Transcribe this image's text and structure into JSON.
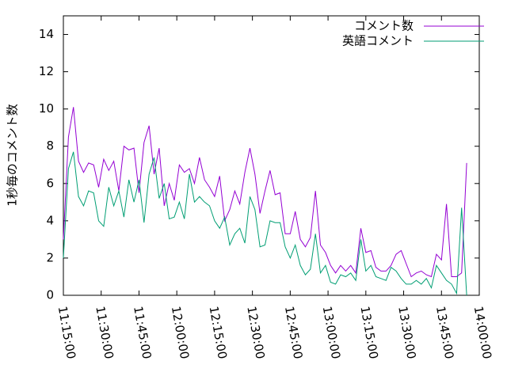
{
  "chart_data": {
    "type": "line",
    "y_label": "1秒毎のコメント数",
    "x": [
      "11:15:00",
      "11:17:00",
      "11:19:00",
      "11:21:00",
      "11:23:00",
      "11:25:00",
      "11:27:00",
      "11:29:00",
      "11:31:00",
      "11:33:00",
      "11:35:00",
      "11:37:00",
      "11:39:00",
      "11:41:00",
      "11:43:00",
      "11:45:00",
      "11:47:00",
      "11:49:00",
      "11:51:00",
      "11:53:00",
      "11:55:00",
      "11:57:00",
      "11:59:00",
      "12:01:00",
      "12:03:00",
      "12:05:00",
      "12:07:00",
      "12:09:00",
      "12:11:00",
      "12:13:00",
      "12:15:00",
      "12:17:00",
      "12:19:00",
      "12:21:00",
      "12:23:00",
      "12:25:00",
      "12:27:00",
      "12:29:00",
      "12:31:00",
      "12:33:00",
      "12:35:00",
      "12:37:00",
      "12:39:00",
      "12:41:00",
      "12:43:00",
      "12:45:00",
      "12:47:00",
      "12:49:00",
      "12:51:00",
      "12:53:00",
      "12:55:00",
      "12:57:00",
      "12:59:00",
      "13:01:00",
      "13:03:00",
      "13:05:00",
      "13:07:00",
      "13:09:00",
      "13:11:00",
      "13:13:00",
      "13:15:00",
      "13:17:00",
      "13:19:00",
      "13:21:00",
      "13:23:00",
      "13:25:00",
      "13:27:00",
      "13:29:00",
      "13:31:00",
      "13:33:00",
      "13:35:00",
      "13:37:00",
      "13:39:00",
      "13:41:00",
      "13:43:00",
      "13:45:00",
      "13:47:00",
      "13:49:00",
      "13:51:00",
      "13:53:00",
      "13:55:00"
    ],
    "series": [
      {
        "name": "コメント数",
        "color": "#9400d3",
        "values": [
          3.0,
          8.5,
          10.1,
          7.2,
          6.6,
          7.1,
          7.0,
          5.8,
          7.3,
          6.7,
          7.2,
          5.6,
          8.0,
          7.8,
          7.9,
          5.5,
          8.2,
          9.1,
          6.5,
          7.9,
          4.8,
          6.0,
          5.1,
          7.0,
          6.6,
          6.8,
          6.0,
          7.4,
          6.2,
          5.8,
          5.3,
          6.4,
          4.0,
          4.6,
          5.6,
          4.9,
          6.6,
          7.9,
          6.5,
          4.4,
          5.6,
          6.7,
          5.4,
          5.5,
          3.3,
          3.3,
          4.5,
          3.0,
          2.6,
          3.1,
          5.6,
          2.7,
          2.3,
          1.6,
          1.2,
          1.6,
          1.3,
          1.6,
          1.2,
          3.6,
          2.3,
          2.4,
          1.5,
          1.3,
          1.3,
          1.6,
          2.2,
          2.4,
          1.7,
          1.0,
          1.2,
          1.3,
          1.1,
          1.0,
          2.2,
          1.9,
          4.9,
          1.0,
          1.0,
          1.2,
          7.1
        ]
      },
      {
        "name": "英語コメント",
        "color": "#009e73",
        "values": [
          2.0,
          6.8,
          7.7,
          5.3,
          4.8,
          5.6,
          5.5,
          4.0,
          3.7,
          5.8,
          4.8,
          5.6,
          4.2,
          6.2,
          5.0,
          6.2,
          3.9,
          6.5,
          7.4,
          5.2,
          6.0,
          4.1,
          4.2,
          5.0,
          4.1,
          6.5,
          5.0,
          5.3,
          5.0,
          4.8,
          4.0,
          3.6,
          4.2,
          2.7,
          3.3,
          3.6,
          2.8,
          5.3,
          4.6,
          2.6,
          2.7,
          4.0,
          3.9,
          3.9,
          2.6,
          2.0,
          2.7,
          1.6,
          1.1,
          1.4,
          3.3,
          1.2,
          1.6,
          0.7,
          0.6,
          1.1,
          1.0,
          1.2,
          0.8,
          3.0,
          1.3,
          1.6,
          1.0,
          0.9,
          0.8,
          1.5,
          1.3,
          0.9,
          0.6,
          0.6,
          0.8,
          0.6,
          0.9,
          0.4,
          1.6,
          1.2,
          0.8,
          0.6,
          0.1,
          4.7,
          0.0
        ]
      }
    ],
    "xlim": [
      "11:15:00",
      "14:00:00"
    ],
    "xticks": [
      "11:15:00",
      "11:30:00",
      "11:45:00",
      "12:00:00",
      "12:15:00",
      "12:30:00",
      "12:45:00",
      "13:00:00",
      "13:15:00",
      "13:30:00",
      "13:45:00",
      "14:00:00"
    ],
    "ylim": [
      0,
      15
    ],
    "yticks": [
      0,
      2,
      4,
      6,
      8,
      10,
      12,
      14
    ],
    "legend": "top-right"
  }
}
